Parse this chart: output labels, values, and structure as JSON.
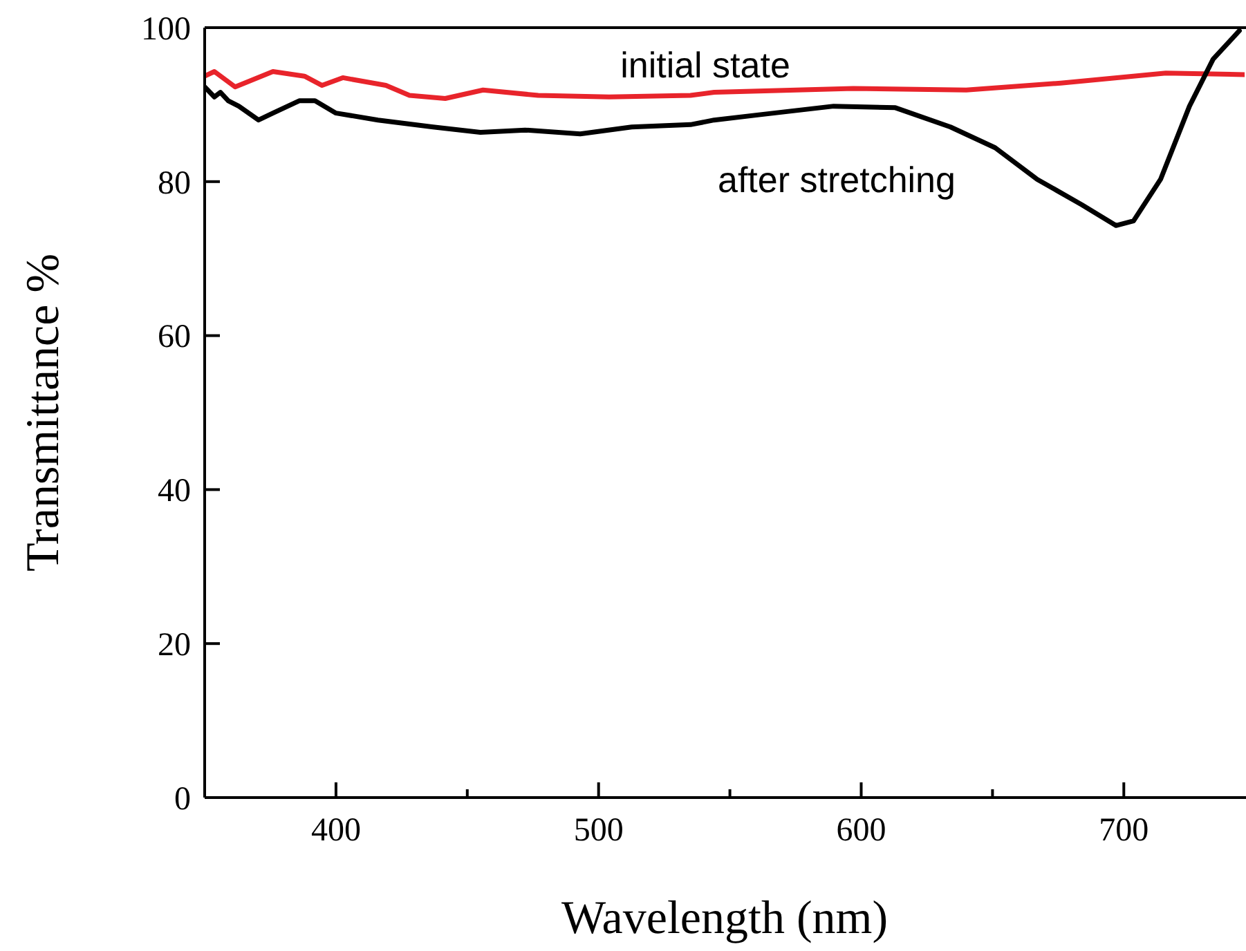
{
  "chart_data": {
    "type": "line",
    "xlabel": "Wavelength (nm)",
    "ylabel": "Transmittance %",
    "xlim": [
      350,
      746
    ],
    "ylim": [
      0,
      100
    ],
    "xticks": [
      400,
      {
        "value": 450,
        "label": null
      },
      500,
      {
        "value": 550,
        "label": null
      },
      600,
      {
        "value": 650,
        "label": null
      },
      700
    ],
    "yticks": [
      0,
      20,
      40,
      60,
      80,
      100
    ],
    "grid": false,
    "line_style": "solid",
    "series": [
      {
        "color": "#e8242b",
        "x": [
          350,
          353.7,
          361.6,
          376,
          388,
          394.7,
          402.6,
          419,
          428,
          441.6,
          456,
          477,
          504,
          535,
          544,
          597,
          640,
          676,
          716,
          746
        ],
        "values": [
          93.7,
          94.3,
          92.3,
          94.3,
          93.7,
          92.5,
          93.5,
          92.5,
          91.2,
          90.8,
          91.9,
          91.2,
          91.0,
          91.2,
          91.6,
          92.1,
          91.9,
          92.8,
          94.1,
          93.9
        ]
      },
      {
        "color": "#000000",
        "x": [
          350,
          353.7,
          356,
          359,
          363,
          370.5,
          376,
          386,
          392,
          400,
          416,
          437,
          455,
          472,
          493,
          512.6,
          535,
          544,
          561.6,
          589.5,
          613,
          634,
          651,
          667,
          684,
          697,
          703.7,
          714,
          725,
          734,
          744
        ],
        "values": [
          92.3,
          91.0,
          91.6,
          90.5,
          89.8,
          88.0,
          88.9,
          90.5,
          90.5,
          88.9,
          88.0,
          87.1,
          86.4,
          86.7,
          86.2,
          87.1,
          87.4,
          88.0,
          88.7,
          89.8,
          89.6,
          87.1,
          84.4,
          80.3,
          77.0,
          74.3,
          74.9,
          80.3,
          89.8,
          95.9,
          99.6
        ]
      }
    ],
    "annotations": [
      "initial state",
      "after stretching"
    ]
  }
}
